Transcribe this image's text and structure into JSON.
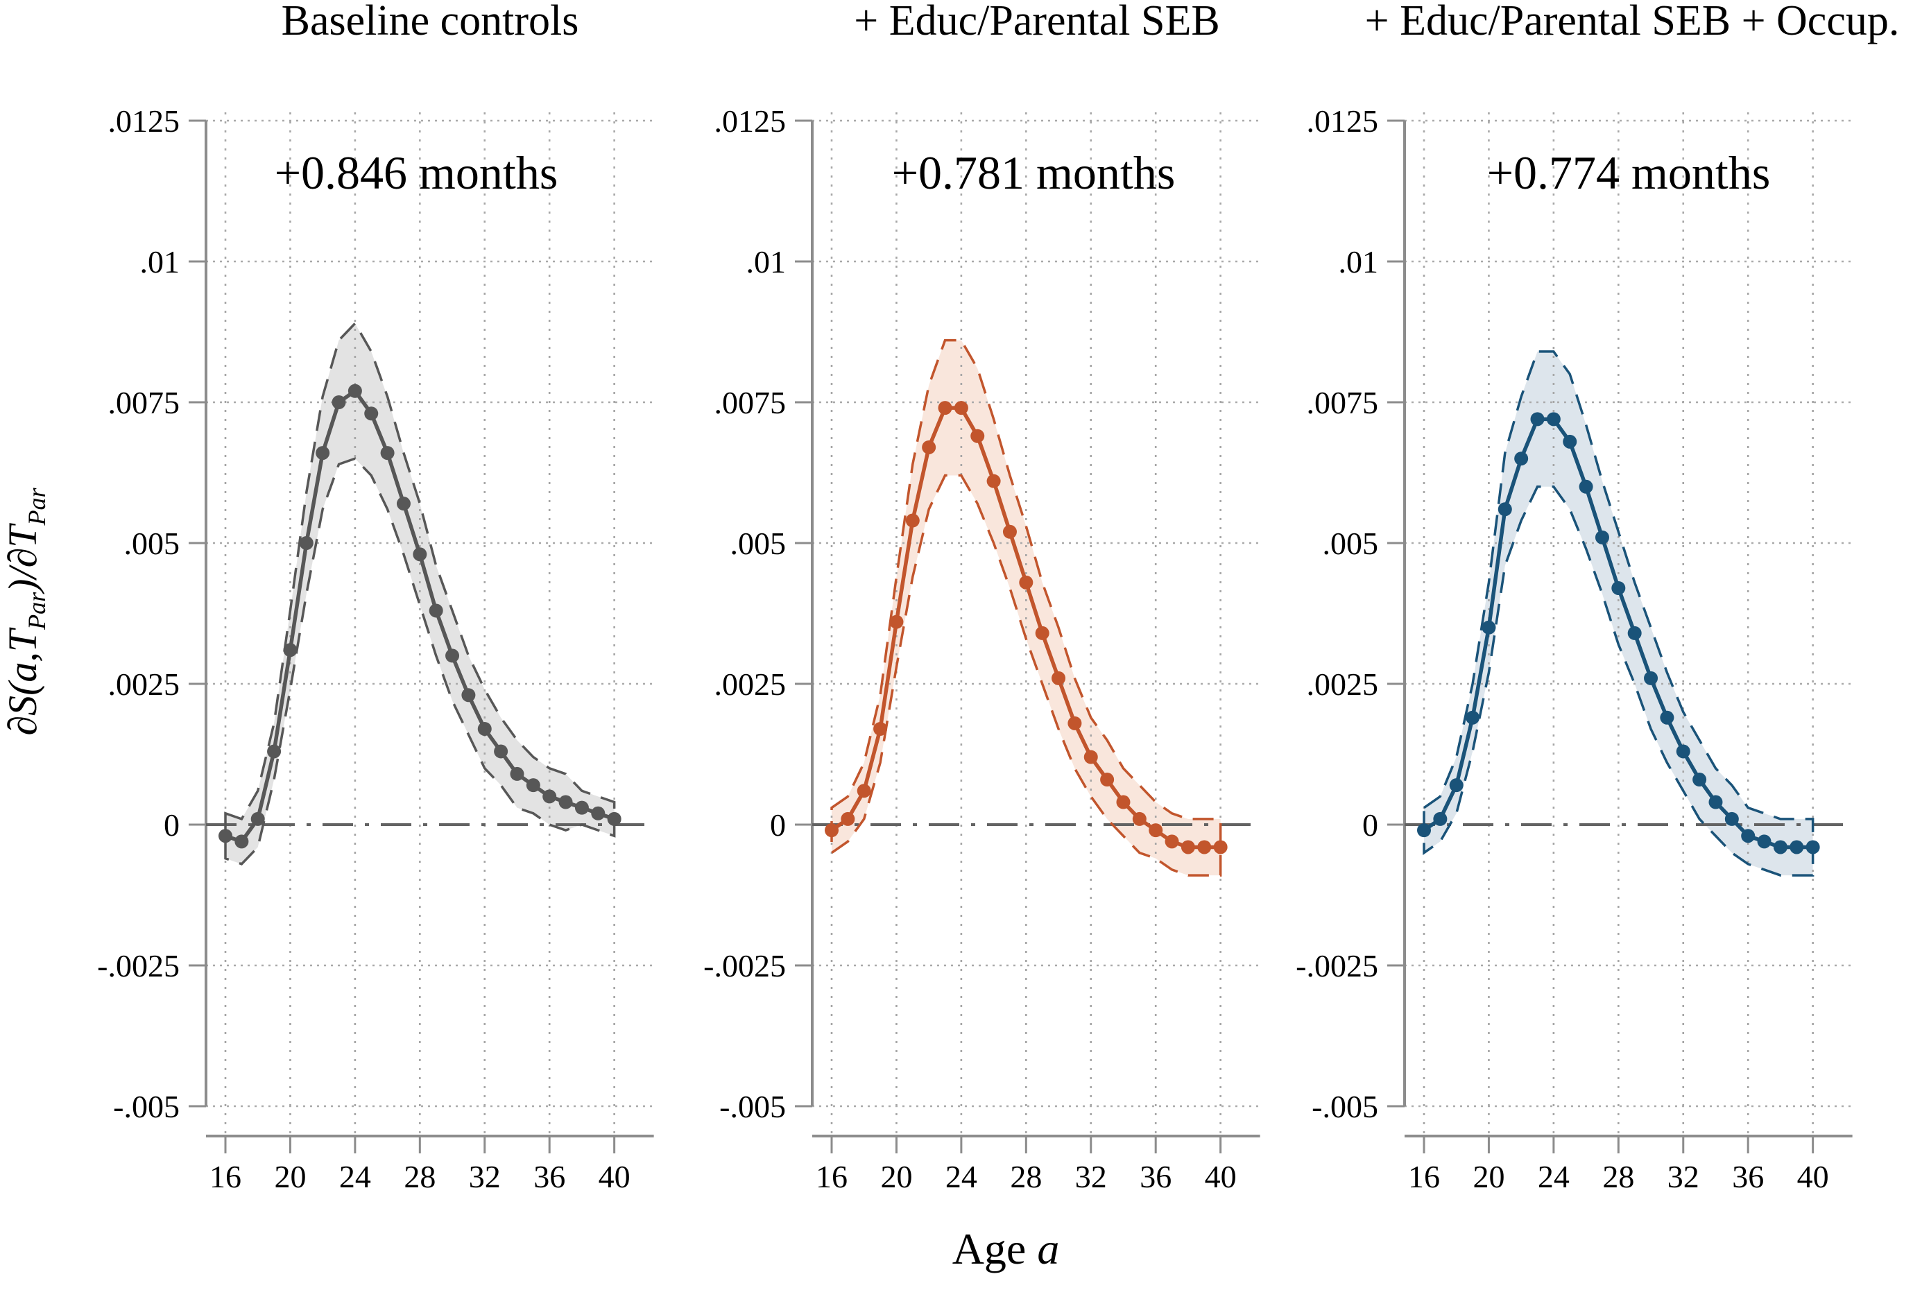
{
  "figure": {
    "xlabel": {
      "prefix": "Age ",
      "var": "a"
    },
    "ylabel": {
      "p1": "∂S(a,T",
      "sub1": "Par",
      "p2": ")/∂T",
      "sub2": "Par"
    },
    "ages": [
      16,
      17,
      18,
      19,
      20,
      21,
      22,
      23,
      24,
      25,
      26,
      27,
      28,
      29,
      30,
      31,
      32,
      33,
      34,
      35,
      36,
      37,
      38,
      39,
      40
    ],
    "x_ticks": [
      16,
      20,
      24,
      28,
      32,
      36,
      40
    ],
    "y_ticks": [
      {
        "label": ".0125",
        "value": 0.0125
      },
      {
        "label": ".01",
        "value": 0.01
      },
      {
        "label": ".0075",
        "value": 0.0075
      },
      {
        "label": ".005",
        "value": 0.005
      },
      {
        "label": ".0025",
        "value": 0.0025
      },
      {
        "label": "0",
        "value": 0
      },
      {
        "label": "-.0025",
        "value": -0.0025
      },
      {
        "label": "-.005",
        "value": -0.005
      }
    ],
    "xlim": [
      16,
      40
    ],
    "ylim": [
      -0.005,
      0.0125
    ],
    "grid": "dotted",
    "zero_line": true
  },
  "chart_data": [
    {
      "type": "line",
      "title": "Baseline controls",
      "annotation": "+0.846 months",
      "color": "#575757",
      "band_fill": "#e3e3e3",
      "values": [
        -0.0002,
        -0.0003,
        0.0001,
        0.0013,
        0.0031,
        0.005,
        0.0066,
        0.0075,
        0.0077,
        0.0073,
        0.0066,
        0.0057,
        0.0048,
        0.0038,
        0.003,
        0.0023,
        0.0017,
        0.0013,
        0.0009,
        0.0007,
        0.0005,
        0.0004,
        0.0003,
        0.0002,
        0.0001
      ],
      "ci_halfwidth": [
        0.0004,
        0.0004,
        0.0005,
        0.0005,
        0.0007,
        0.0009,
        0.001,
        0.0011,
        0.0012,
        0.0011,
        0.001,
        0.0009,
        0.0009,
        0.0008,
        0.0008,
        0.0007,
        0.0007,
        0.0006,
        0.0006,
        0.0005,
        0.0005,
        0.0005,
        0.0003,
        0.0003,
        0.0003
      ]
    },
    {
      "type": "line",
      "title": "+ Educ/Parental SEB",
      "annotation": "+0.781 months",
      "color": "#c2552c",
      "band_fill": "#f9e6dc",
      "values": [
        -0.0001,
        0.0001,
        0.0006,
        0.0017,
        0.0036,
        0.0054,
        0.0067,
        0.0074,
        0.0074,
        0.0069,
        0.0061,
        0.0052,
        0.0043,
        0.0034,
        0.0026,
        0.0018,
        0.0012,
        0.0008,
        0.0004,
        0.0001,
        -0.0001,
        -0.0003,
        -0.0004,
        -0.0004,
        -0.0004
      ],
      "ci_halfwidth": [
        0.0004,
        0.0004,
        0.0005,
        0.0006,
        0.0008,
        0.001,
        0.0011,
        0.0012,
        0.0012,
        0.0012,
        0.0011,
        0.001,
        0.001,
        0.0009,
        0.0009,
        0.0008,
        0.0007,
        0.0007,
        0.0006,
        0.0006,
        0.0005,
        0.0005,
        0.0005,
        0.0005,
        0.0005
      ]
    },
    {
      "type": "line",
      "title": "+ Educ/Parental SEB + Occup.",
      "annotation": "+0.774 months",
      "color": "#1a5379",
      "band_fill": "#dde5ec",
      "values": [
        -0.0001,
        0.0001,
        0.0007,
        0.0019,
        0.0035,
        0.0056,
        0.0065,
        0.0072,
        0.0072,
        0.0068,
        0.006,
        0.0051,
        0.0042,
        0.0034,
        0.0026,
        0.0019,
        0.0013,
        0.0008,
        0.0004,
        0.0001,
        -0.0002,
        -0.0003,
        -0.0004,
        -0.0004,
        -0.0004
      ],
      "ci_halfwidth": [
        0.0004,
        0.0004,
        0.0005,
        0.0006,
        0.0008,
        0.001,
        0.0011,
        0.0012,
        0.0012,
        0.0012,
        0.0011,
        0.001,
        0.001,
        0.0009,
        0.0009,
        0.0008,
        0.0007,
        0.0007,
        0.0006,
        0.0006,
        0.0005,
        0.0005,
        0.0005,
        0.0005,
        0.0005
      ]
    }
  ]
}
